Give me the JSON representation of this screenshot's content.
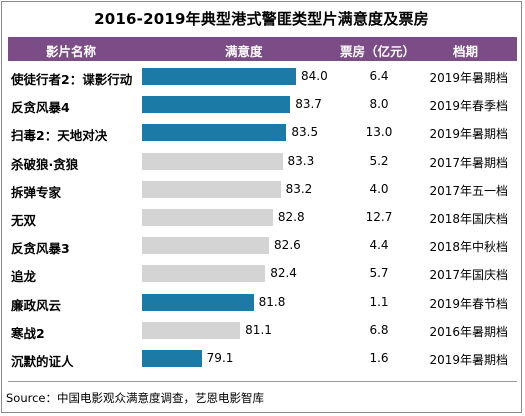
{
  "title": "2016-2019年典型港式警匪类型片满意度及票房",
  "header": {
    "col_name": "影片名称",
    "col_satisfaction": "满意度",
    "col_boxoffice": "票房（亿元）",
    "col_period": "档期"
  },
  "colors": {
    "header_bg": "#7b4c86",
    "bar_blue": "#1b7ba6",
    "bar_gray": "#d4d4d4"
  },
  "chart_data": {
    "type": "table",
    "title": "2016-2019年典型港式警匪类型片满意度及票房",
    "columns": [
      "影片名称",
      "满意度",
      "票房（亿元）",
      "档期"
    ],
    "rows": [
      {
        "name": "使徒行者2：谍影行动",
        "satisfaction": 84.0,
        "satisfaction_text": "84.0",
        "box_office": "6.4",
        "period": "2019年暑期档",
        "highlight": true
      },
      {
        "name": "反贪风暴4",
        "satisfaction": 83.7,
        "satisfaction_text": "83.7",
        "box_office": "8.0",
        "period": "2019年春季档",
        "highlight": true
      },
      {
        "name": "扫毒2：天地对决",
        "satisfaction": 83.5,
        "satisfaction_text": "83.5",
        "box_office": "13.0",
        "period": "2019年暑期档",
        "highlight": true
      },
      {
        "name": "杀破狼·贪狼",
        "satisfaction": 83.3,
        "satisfaction_text": "83.3",
        "box_office": "5.2",
        "period": "2017年暑期档",
        "highlight": false
      },
      {
        "name": "拆弹专家",
        "satisfaction": 83.2,
        "satisfaction_text": "83.2",
        "box_office": "4.0",
        "period": "2017年五一档",
        "highlight": false
      },
      {
        "name": "无双",
        "satisfaction": 82.8,
        "satisfaction_text": "82.8",
        "box_office": "12.7",
        "period": "2018年国庆档",
        "highlight": false
      },
      {
        "name": "反贪风暴3",
        "satisfaction": 82.6,
        "satisfaction_text": "82.6",
        "box_office": "4.4",
        "period": "2018年中秋档",
        "highlight": false
      },
      {
        "name": "追龙",
        "satisfaction": 82.4,
        "satisfaction_text": "82.4",
        "box_office": "5.7",
        "period": "2017年国庆档",
        "highlight": false
      },
      {
        "name": "廉政风云",
        "satisfaction": 81.8,
        "satisfaction_text": "81.8",
        "box_office": "1.1",
        "period": "2019年春节档",
        "highlight": true
      },
      {
        "name": "寒战2",
        "satisfaction": 81.1,
        "satisfaction_text": "81.1",
        "box_office": "6.8",
        "period": "2016年暑期档",
        "highlight": false
      },
      {
        "name": "沉默的证人",
        "satisfaction": 79.1,
        "satisfaction_text": "79.1",
        "box_office": "1.6",
        "period": "2019年暑期档",
        "highlight": true
      }
    ],
    "satisfaction_range": [
      76.0,
      84.0
    ]
  },
  "source": "Source：中国电影观众满意度调查，艺恩电影智库"
}
